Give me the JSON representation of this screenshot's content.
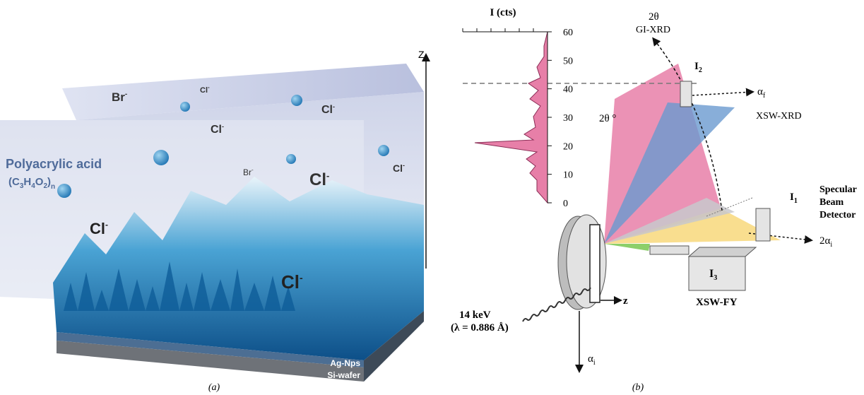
{
  "panel_a": {
    "caption": "(a)",
    "axis": "Z",
    "material": "Polyacrylic acid",
    "formula": {
      "open": "(C",
      "s1": "3",
      "h": "H",
      "s2": "4",
      "o": "O",
      "s3": "2",
      "close": ")",
      "s4": "n"
    },
    "ions": [
      {
        "base": "Br",
        "sup": "-"
      },
      {
        "base": "Cl",
        "sup": "-"
      },
      {
        "base": "Cl",
        "sup": "-"
      },
      {
        "base": "Cl",
        "sup": "-"
      },
      {
        "base": "Br",
        "sup": "-"
      },
      {
        "base": "Cl",
        "sup": "-"
      },
      {
        "base": "Cl",
        "sup": "-"
      },
      {
        "base": "Cl",
        "sup": "-"
      },
      {
        "base": "Cl",
        "sup": "-"
      }
    ],
    "layers": [
      "Ag-Nps",
      "Si-wafer"
    ]
  },
  "panel_b": {
    "caption": "(b)",
    "plot": {
      "x_label": "I (cts)",
      "y_label": "2θ °",
      "ylim": [
        0,
        60
      ],
      "yticks": [
        0,
        10,
        20,
        30,
        40,
        50,
        60
      ]
    },
    "angle_2theta": "2θ",
    "gi_xrd": "GI-XRD",
    "i2": {
      "base": "I",
      "sub": "2"
    },
    "alpha_f": {
      "base": "α",
      "sub": "f"
    },
    "xsw_xrd": "XSW-XRD",
    "specular": [
      "Specular",
      "Beam",
      "Detector"
    ],
    "i1": {
      "base": "I",
      "sub": "1"
    },
    "two_alpha_i": {
      "base": "2α",
      "sub": "i"
    },
    "i3": {
      "base": "I",
      "sub": "3"
    },
    "xsw_fy": "XSW-FY",
    "z": "z",
    "energy": "14 keV",
    "wavelength": "(λ = 0.886 Å)",
    "alpha_i": {
      "base": "α",
      "sub": "i"
    }
  }
}
